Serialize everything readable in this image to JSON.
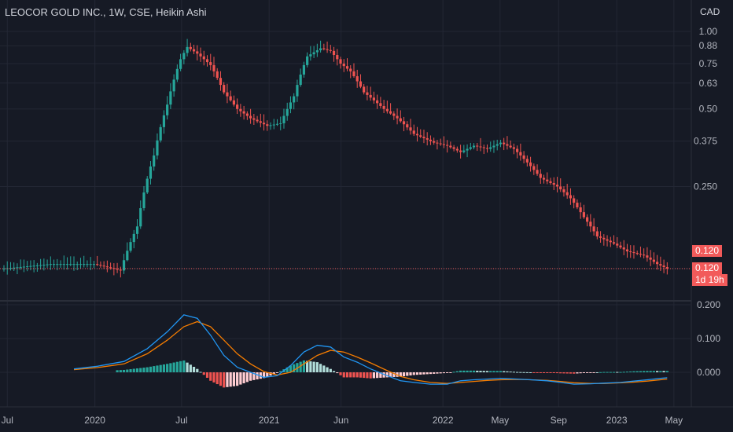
{
  "header": {
    "title": "LEOCOR GOLD INC., 1W, CSE, Heikin Ashi",
    "currency": "CAD"
  },
  "badges": {
    "last_price": "0.120",
    "last_price2": "0.120",
    "countdown": "1d 19h"
  },
  "colors": {
    "background": "#161a25",
    "up": "#26a69a",
    "down": "#ef5350",
    "macd_line": "#2196f3",
    "signal_line": "#f57c00",
    "hist_up_strong": "#26a69a",
    "hist_up_weak": "#b2dfdb",
    "hist_down_strong": "#ef5350",
    "hist_down_weak": "#ffcdd2",
    "grid": "#232734",
    "price_line": "#f25a5a"
  },
  "chart_data": [
    {
      "type": "candlestick",
      "style": "Heikin Ashi",
      "y_scale": "log",
      "yticks": [
        "1.00",
        "0.88",
        "0.75",
        "0.63",
        "0.50",
        "0.375",
        "0.250",
        "0.120"
      ],
      "ytick_values": [
        1.0,
        0.88,
        0.75,
        0.63,
        0.5,
        0.375,
        0.25,
        0.12
      ],
      "xticks": [
        "Jul",
        "2020",
        "Jul",
        "2021",
        "Jun",
        "2022",
        "May",
        "Sep",
        "2023",
        "May"
      ],
      "xtick_dates": [
        "2019-07-01",
        "2020-01-01",
        "2020-07-01",
        "2021-01-01",
        "2021-06-01",
        "2022-01-01",
        "2022-05-01",
        "2022-09-01",
        "2023-01-01",
        "2023-05-01"
      ],
      "start_date": "2019-06-24",
      "last_price": 0.12,
      "close_path": [
        [
          "2019-06-24",
          0.12
        ],
        [
          "2019-09-30",
          0.125
        ],
        [
          "2019-12-30",
          0.125
        ],
        [
          "2020-02-24",
          0.118
        ],
        [
          "2020-03-30",
          0.175
        ],
        [
          "2020-05-04",
          0.33
        ],
        [
          "2020-06-01",
          0.52
        ],
        [
          "2020-06-29",
          0.78
        ],
        [
          "2020-07-13",
          0.87
        ],
        [
          "2020-08-03",
          0.82
        ],
        [
          "2020-08-31",
          0.74
        ],
        [
          "2020-09-28",
          0.58
        ],
        [
          "2020-10-26",
          0.5
        ],
        [
          "2020-11-23",
          0.46
        ],
        [
          "2020-12-28",
          0.43
        ],
        [
          "2021-01-25",
          0.44
        ],
        [
          "2021-02-22",
          0.56
        ],
        [
          "2021-03-22",
          0.8
        ],
        [
          "2021-04-19",
          0.86
        ],
        [
          "2021-05-10",
          0.84
        ],
        [
          "2021-05-31",
          0.75
        ],
        [
          "2021-06-21",
          0.7
        ],
        [
          "2021-07-19",
          0.58
        ],
        [
          "2021-08-30",
          0.5
        ],
        [
          "2021-09-27",
          0.46
        ],
        [
          "2021-11-01",
          0.4
        ],
        [
          "2021-12-13",
          0.37
        ],
        [
          "2022-01-10",
          0.36
        ],
        [
          "2022-02-07",
          0.34
        ],
        [
          "2022-03-07",
          0.36
        ],
        [
          "2022-04-04",
          0.35
        ],
        [
          "2022-05-02",
          0.37
        ],
        [
          "2022-05-30",
          0.35
        ],
        [
          "2022-06-27",
          0.31
        ],
        [
          "2022-07-25",
          0.27
        ],
        [
          "2022-08-29",
          0.25
        ],
        [
          "2022-09-26",
          0.225
        ],
        [
          "2022-10-24",
          0.19
        ],
        [
          "2022-11-21",
          0.16
        ],
        [
          "2022-12-26",
          0.15
        ],
        [
          "2023-01-23",
          0.14
        ],
        [
          "2023-02-27",
          0.135
        ],
        [
          "2023-03-27",
          0.125
        ],
        [
          "2023-04-17",
          0.12
        ]
      ]
    },
    {
      "type": "macd",
      "yticks": [
        "0.200",
        "0.100",
        "0.000"
      ],
      "ytick_values": [
        0.2,
        0.1,
        0.0
      ],
      "series": [
        {
          "name": "",
          "role": "macd",
          "color": "#2196f3"
        },
        {
          "name": "",
          "role": "signal",
          "color": "#f57c00"
        },
        {
          "name": "",
          "role": "histogram"
        }
      ],
      "macd_path": [
        [
          "2019-11-18",
          0.01
        ],
        [
          "2020-01-06",
          0.018
        ],
        [
          "2020-03-02",
          0.032
        ],
        [
          "2020-04-20",
          0.07
        ],
        [
          "2020-06-01",
          0.12
        ],
        [
          "2020-07-06",
          0.17
        ],
        [
          "2020-08-03",
          0.16
        ],
        [
          "2020-08-31",
          0.11
        ],
        [
          "2020-09-28",
          0.05
        ],
        [
          "2020-10-26",
          0.015
        ],
        [
          "2020-11-23",
          0.0
        ],
        [
          "2020-12-21",
          -0.015
        ],
        [
          "2021-01-18",
          -0.01
        ],
        [
          "2021-02-15",
          0.02
        ],
        [
          "2021-03-15",
          0.06
        ],
        [
          "2021-04-12",
          0.08
        ],
        [
          "2021-05-10",
          0.075
        ],
        [
          "2021-06-07",
          0.045
        ],
        [
          "2021-07-05",
          0.03
        ],
        [
          "2021-08-02",
          0.01
        ],
        [
          "2021-09-06",
          -0.01
        ],
        [
          "2021-10-04",
          -0.025
        ],
        [
          "2021-11-01",
          -0.03
        ],
        [
          "2021-12-06",
          -0.035
        ],
        [
          "2022-01-10",
          -0.035
        ],
        [
          "2022-02-07",
          -0.025
        ],
        [
          "2022-03-07",
          -0.022
        ],
        [
          "2022-04-04",
          -0.02
        ],
        [
          "2022-05-02",
          -0.018
        ],
        [
          "2022-06-06",
          -0.02
        ],
        [
          "2022-07-04",
          -0.022
        ],
        [
          "2022-08-08",
          -0.025
        ],
        [
          "2022-09-05",
          -0.03
        ],
        [
          "2022-10-03",
          -0.035
        ],
        [
          "2022-11-07",
          -0.034
        ],
        [
          "2022-12-05",
          -0.032
        ],
        [
          "2023-01-09",
          -0.03
        ],
        [
          "2023-02-06",
          -0.026
        ],
        [
          "2023-03-06",
          -0.022
        ],
        [
          "2023-04-03",
          -0.018
        ],
        [
          "2023-04-17",
          -0.016
        ]
      ],
      "signal_path": [
        [
          "2019-11-18",
          0.008
        ],
        [
          "2020-01-06",
          0.014
        ],
        [
          "2020-03-02",
          0.025
        ],
        [
          "2020-04-20",
          0.055
        ],
        [
          "2020-06-01",
          0.095
        ],
        [
          "2020-07-06",
          0.135
        ],
        [
          "2020-08-03",
          0.15
        ],
        [
          "2020-08-31",
          0.135
        ],
        [
          "2020-09-28",
          0.095
        ],
        [
          "2020-10-26",
          0.055
        ],
        [
          "2020-11-23",
          0.025
        ],
        [
          "2020-12-21",
          0.002
        ],
        [
          "2021-01-18",
          -0.008
        ],
        [
          "2021-02-15",
          0.0
        ],
        [
          "2021-03-15",
          0.025
        ],
        [
          "2021-04-12",
          0.05
        ],
        [
          "2021-05-10",
          0.065
        ],
        [
          "2021-06-07",
          0.06
        ],
        [
          "2021-07-05",
          0.045
        ],
        [
          "2021-08-02",
          0.028
        ],
        [
          "2021-09-06",
          0.005
        ],
        [
          "2021-10-04",
          -0.012
        ],
        [
          "2021-11-01",
          -0.022
        ],
        [
          "2021-12-06",
          -0.03
        ],
        [
          "2022-01-10",
          -0.033
        ],
        [
          "2022-02-07",
          -0.03
        ],
        [
          "2022-03-07",
          -0.027
        ],
        [
          "2022-04-04",
          -0.024
        ],
        [
          "2022-05-02",
          -0.022
        ],
        [
          "2022-06-06",
          -0.021
        ],
        [
          "2022-07-04",
          -0.022
        ],
        [
          "2022-08-08",
          -0.024
        ],
        [
          "2022-09-05",
          -0.027
        ],
        [
          "2022-10-03",
          -0.031
        ],
        [
          "2022-11-07",
          -0.033
        ],
        [
          "2022-12-05",
          -0.033
        ],
        [
          "2023-01-09",
          -0.031
        ],
        [
          "2023-02-06",
          -0.029
        ],
        [
          "2023-03-06",
          -0.026
        ],
        [
          "2023-04-03",
          -0.022
        ],
        [
          "2023-04-17",
          -0.02
        ]
      ]
    }
  ]
}
